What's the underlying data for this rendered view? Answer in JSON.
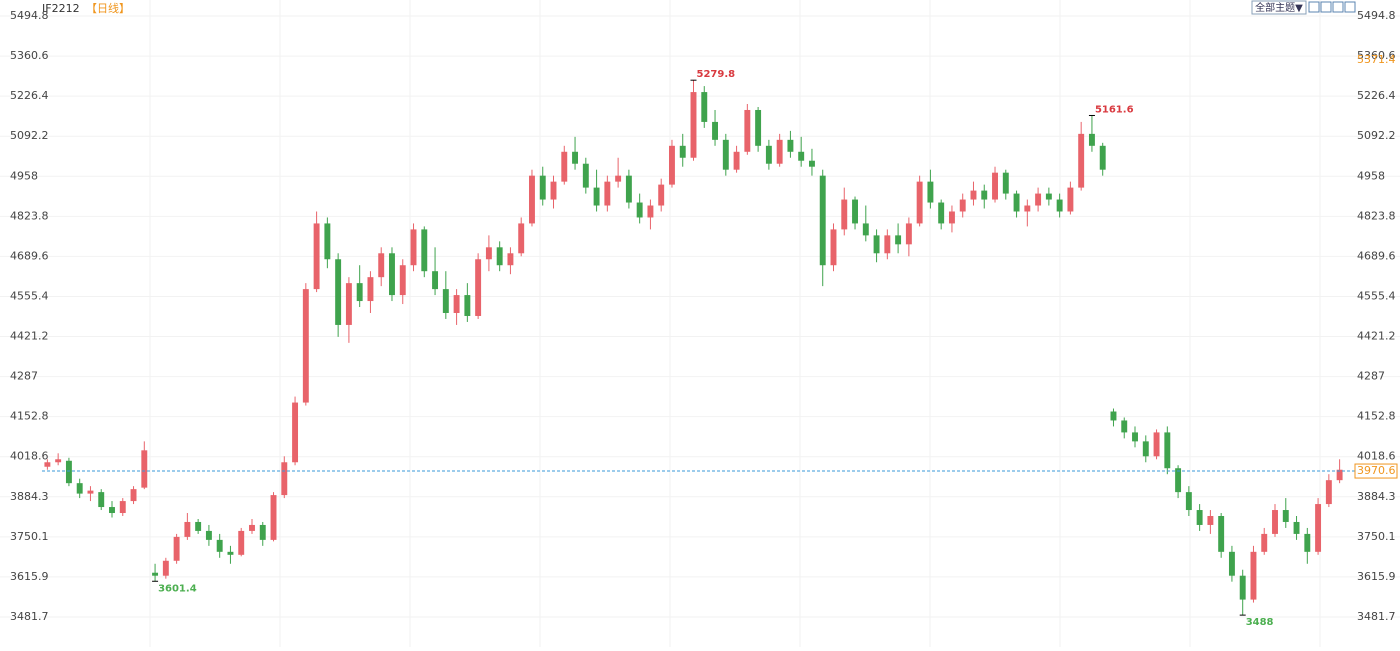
{
  "chart_data": {
    "type": "candlestick",
    "symbol": "IF2212",
    "period": "【日线】",
    "theme_menu": "全部主题▼",
    "ylim": [
      3381.2,
      5548.4
    ],
    "yticks": [
      3481.7,
      3615.9,
      3750.1,
      3884.3,
      4018.6,
      4152.8,
      4287.0,
      4421.2,
      4555.4,
      4689.6,
      4823.8,
      4958.0,
      5092.2,
      5226.4,
      5360.6,
      5494.8
    ],
    "grid": true,
    "up_color": "#e8636a",
    "down_color": "#3fa34d",
    "last_price": 3970.6,
    "marker_price": 5371.4,
    "highs": [
      5279.8,
      5161.6
    ],
    "lows": [
      3601.4,
      3488.0
    ],
    "ohlc": [
      [
        3985,
        4010,
        3975,
        4000
      ],
      [
        4000,
        4030,
        3990,
        4010
      ],
      [
        4005,
        4015,
        3920,
        3930
      ],
      [
        3930,
        3945,
        3880,
        3895
      ],
      [
        3895,
        3920,
        3870,
        3905
      ],
      [
        3900,
        3910,
        3840,
        3850
      ],
      [
        3850,
        3870,
        3815,
        3830
      ],
      [
        3830,
        3880,
        3820,
        3870
      ],
      [
        3870,
        3920,
        3860,
        3910
      ],
      [
        3915,
        4070,
        3910,
        4040
      ],
      [
        3630,
        3660,
        3601.4,
        3620
      ],
      [
        3620,
        3680,
        3610,
        3670
      ],
      [
        3670,
        3760,
        3660,
        3750
      ],
      [
        3750,
        3830,
        3740,
        3800
      ],
      [
        3800,
        3810,
        3760,
        3770
      ],
      [
        3770,
        3790,
        3720,
        3740
      ],
      [
        3740,
        3760,
        3680,
        3700
      ],
      [
        3700,
        3720,
        3660,
        3690
      ],
      [
        3690,
        3780,
        3685,
        3770
      ],
      [
        3770,
        3810,
        3760,
        3790
      ],
      [
        3790,
        3800,
        3720,
        3740
      ],
      [
        3740,
        3900,
        3735,
        3890
      ],
      [
        3890,
        4020,
        3880,
        4000
      ],
      [
        4000,
        4220,
        3990,
        4200
      ],
      [
        4200,
        4600,
        4190,
        4580
      ],
      [
        4580,
        4840,
        4570,
        4800
      ],
      [
        4800,
        4820,
        4650,
        4680
      ],
      [
        4680,
        4700,
        4420,
        4460
      ],
      [
        4460,
        4620,
        4400,
        4600
      ],
      [
        4600,
        4660,
        4520,
        4540
      ],
      [
        4540,
        4640,
        4500,
        4620
      ],
      [
        4620,
        4720,
        4590,
        4700
      ],
      [
        4700,
        4720,
        4540,
        4560
      ],
      [
        4560,
        4680,
        4530,
        4660
      ],
      [
        4660,
        4800,
        4640,
        4780
      ],
      [
        4780,
        4790,
        4620,
        4640
      ],
      [
        4640,
        4720,
        4560,
        4580
      ],
      [
        4580,
        4640,
        4480,
        4500
      ],
      [
        4500,
        4580,
        4460,
        4560
      ],
      [
        4560,
        4600,
        4470,
        4490
      ],
      [
        4490,
        4700,
        4480,
        4680
      ],
      [
        4680,
        4760,
        4640,
        4720
      ],
      [
        4720,
        4740,
        4640,
        4660
      ],
      [
        4660,
        4720,
        4630,
        4700
      ],
      [
        4700,
        4820,
        4690,
        4800
      ],
      [
        4800,
        4980,
        4790,
        4960
      ],
      [
        4960,
        4990,
        4860,
        4880
      ],
      [
        4880,
        4960,
        4850,
        4940
      ],
      [
        4940,
        5060,
        4930,
        5040
      ],
      [
        5040,
        5090,
        4980,
        5000
      ],
      [
        5000,
        5020,
        4900,
        4920
      ],
      [
        4920,
        4980,
        4840,
        4860
      ],
      [
        4860,
        4960,
        4840,
        4940
      ],
      [
        4940,
        5020,
        4920,
        4960
      ],
      [
        4960,
        4980,
        4850,
        4870
      ],
      [
        4870,
        4900,
        4800,
        4820
      ],
      [
        4820,
        4880,
        4780,
        4860
      ],
      [
        4860,
        4950,
        4840,
        4930
      ],
      [
        4930,
        5080,
        4920,
        5060
      ],
      [
        5060,
        5100,
        4990,
        5020
      ],
      [
        5020,
        5279.8,
        5010,
        5240
      ],
      [
        5240,
        5260,
        5120,
        5140
      ],
      [
        5140,
        5180,
        5060,
        5080
      ],
      [
        5080,
        5100,
        4960,
        4980
      ],
      [
        4980,
        5060,
        4970,
        5040
      ],
      [
        5040,
        5200,
        5030,
        5180
      ],
      [
        5180,
        5190,
        5040,
        5060
      ],
      [
        5060,
        5080,
        4980,
        5000
      ],
      [
        5000,
        5100,
        4990,
        5080
      ],
      [
        5080,
        5110,
        5020,
        5040
      ],
      [
        5040,
        5090,
        4990,
        5010
      ],
      [
        5010,
        5050,
        4960,
        4990
      ],
      [
        4960,
        4980,
        4590,
        4660
      ],
      [
        4660,
        4800,
        4640,
        4780
      ],
      [
        4780,
        4920,
        4760,
        4880
      ],
      [
        4880,
        4890,
        4780,
        4800
      ],
      [
        4800,
        4860,
        4740,
        4760
      ],
      [
        4760,
        4780,
        4670,
        4700
      ],
      [
        4700,
        4780,
        4680,
        4760
      ],
      [
        4760,
        4800,
        4700,
        4730
      ],
      [
        4730,
        4820,
        4690,
        4800
      ],
      [
        4800,
        4960,
        4790,
        4940
      ],
      [
        4940,
        4980,
        4850,
        4870
      ],
      [
        4870,
        4880,
        4780,
        4800
      ],
      [
        4800,
        4860,
        4770,
        4840
      ],
      [
        4840,
        4900,
        4820,
        4880
      ],
      [
        4880,
        4940,
        4860,
        4910
      ],
      [
        4910,
        4930,
        4850,
        4880
      ],
      [
        4880,
        4990,
        4870,
        4970
      ],
      [
        4970,
        4980,
        4880,
        4900
      ],
      [
        4900,
        4910,
        4820,
        4840
      ],
      [
        4840,
        4880,
        4790,
        4860
      ],
      [
        4860,
        4920,
        4840,
        4900
      ],
      [
        4900,
        4920,
        4860,
        4880
      ],
      [
        4880,
        4900,
        4820,
        4840
      ],
      [
        4840,
        4940,
        4830,
        4920
      ],
      [
        4920,
        5140,
        4910,
        5100
      ],
      [
        5100,
        5161.6,
        5040,
        5060
      ],
      [
        5060,
        5070,
        4960,
        4980
      ],
      [
        4170,
        4180,
        4120,
        4140
      ],
      [
        4140,
        4150,
        4080,
        4100
      ],
      [
        4100,
        4120,
        4050,
        4070
      ],
      [
        4070,
        4090,
        4000,
        4020
      ],
      [
        4020,
        4110,
        4010,
        4100
      ],
      [
        4100,
        4120,
        3960,
        3980
      ],
      [
        3980,
        3990,
        3880,
        3900
      ],
      [
        3900,
        3920,
        3820,
        3840
      ],
      [
        3840,
        3860,
        3770,
        3790
      ],
      [
        3790,
        3840,
        3760,
        3820
      ],
      [
        3820,
        3830,
        3680,
        3700
      ],
      [
        3700,
        3720,
        3600,
        3620
      ],
      [
        3620,
        3640,
        3488.0,
        3540
      ],
      [
        3540,
        3720,
        3530,
        3700
      ],
      [
        3700,
        3780,
        3690,
        3760
      ],
      [
        3760,
        3860,
        3750,
        3840
      ],
      [
        3840,
        3880,
        3780,
        3800
      ],
      [
        3800,
        3820,
        3740,
        3760
      ],
      [
        3760,
        3780,
        3660,
        3700
      ],
      [
        3700,
        3880,
        3690,
        3860
      ],
      [
        3860,
        3960,
        3850,
        3940
      ],
      [
        3940,
        4010,
        3930,
        3975
      ]
    ]
  }
}
